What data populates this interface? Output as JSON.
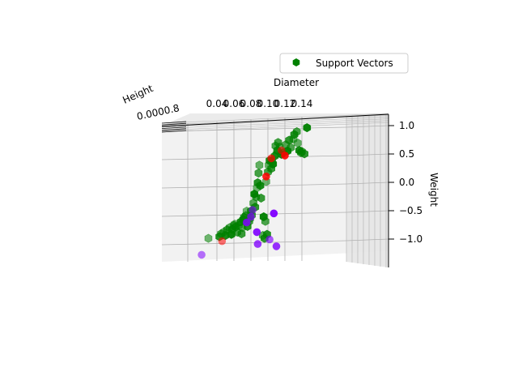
{
  "chart_data": {
    "type": "scatter",
    "projection": "3d",
    "xlabel": "Diameter",
    "ylabel": "Height",
    "zlabel": "Weight",
    "x_ticks": [
      "0.04",
      "0.06",
      "0.08",
      "0.10",
      "0.12",
      "0.14"
    ],
    "z_ticks": [
      "1.0",
      "0.5",
      "0.0",
      "−0.5",
      "−1.0"
    ],
    "y_ticks_overlapping": "0.0000.8",
    "xlim": [
      0.02,
      0.15
    ],
    "zlim": [
      -1.4,
      1.2
    ],
    "grid": true,
    "legend": {
      "placement": "top-right",
      "entries": [
        "Support Vectors"
      ]
    },
    "colors": {
      "support_vectors": "#008000",
      "class_red": "#ff0000",
      "class_purple": "#8000ff",
      "pane": "#f2f2f2",
      "grid": "#b0b0b0"
    },
    "series": [
      {
        "name": "Support Vectors",
        "marker": "hexagon",
        "color": "#008000",
        "points": [
          [
            0.03,
            -0.93
          ],
          [
            0.043,
            -0.9
          ],
          [
            0.045,
            -0.85
          ],
          [
            0.048,
            -0.82
          ],
          [
            0.05,
            -0.88
          ],
          [
            0.052,
            -0.78
          ],
          [
            0.055,
            -0.74
          ],
          [
            0.057,
            -0.86
          ],
          [
            0.058,
            -0.77
          ],
          [
            0.06,
            -0.7
          ],
          [
            0.061,
            -0.68
          ],
          [
            0.062,
            -0.73
          ],
          [
            0.064,
            -0.82
          ],
          [
            0.066,
            -0.7
          ],
          [
            0.068,
            -0.64
          ],
          [
            0.069,
            -0.85
          ],
          [
            0.07,
            -0.74
          ],
          [
            0.071,
            -0.6
          ],
          [
            0.072,
            -0.56
          ],
          [
            0.074,
            -0.53
          ],
          [
            0.075,
            -0.45
          ],
          [
            0.076,
            -0.72
          ],
          [
            0.078,
            -0.63
          ],
          [
            0.079,
            -0.58
          ],
          [
            0.08,
            -0.45
          ],
          [
            0.081,
            -0.52
          ],
          [
            0.083,
            -0.31
          ],
          [
            0.084,
            -0.15
          ],
          [
            0.085,
            -0.38
          ],
          [
            0.086,
            -0.2
          ],
          [
            0.087,
            -0.04
          ],
          [
            0.088,
            0.05
          ],
          [
            0.089,
            0.22
          ],
          [
            0.09,
            0.36
          ],
          [
            0.091,
            0.0
          ],
          [
            0.092,
            -0.22
          ],
          [
            0.094,
            -0.88
          ],
          [
            0.095,
            -0.55
          ],
          [
            0.096,
            -0.93
          ],
          [
            0.097,
            -0.63
          ],
          [
            0.098,
            0.07
          ],
          [
            0.099,
            -0.86
          ],
          [
            0.1,
            0.24
          ],
          [
            0.101,
            0.36
          ],
          [
            0.102,
            0.44
          ],
          [
            0.104,
            0.3
          ],
          [
            0.105,
            0.43
          ],
          [
            0.106,
            0.38
          ],
          [
            0.108,
            0.52
          ],
          [
            0.109,
            0.7
          ],
          [
            0.11,
            0.55
          ],
          [
            0.111,
            0.62
          ],
          [
            0.112,
            0.76
          ],
          [
            0.114,
            0.68
          ],
          [
            0.116,
            0.55
          ],
          [
            0.118,
            0.58
          ],
          [
            0.121,
            0.72
          ],
          [
            0.123,
            0.61
          ],
          [
            0.125,
            0.8
          ],
          [
            0.127,
            0.67
          ],
          [
            0.13,
            0.82
          ],
          [
            0.131,
            0.9
          ],
          [
            0.134,
            0.95
          ],
          [
            0.135,
            0.75
          ],
          [
            0.137,
            0.62
          ],
          [
            0.139,
            0.58
          ],
          [
            0.14,
            0.6
          ],
          [
            0.146,
            1.02
          ],
          [
            0.143,
            0.56
          ]
        ]
      },
      {
        "name": "",
        "marker": "circle",
        "color": "#ff0000",
        "points": [
          [
            0.046,
            -0.98
          ],
          [
            0.098,
            0.16
          ],
          [
            0.104,
            0.48
          ],
          [
            0.116,
            0.62
          ],
          [
            0.12,
            0.53
          ]
        ]
      },
      {
        "name": "",
        "marker": "circle",
        "color": "#8000ff",
        "points": [
          [
            0.022,
            -1.22
          ],
          [
            0.075,
            -0.65
          ],
          [
            0.08,
            -0.55
          ],
          [
            0.082,
            -0.43
          ],
          [
            0.087,
            -0.82
          ],
          [
            0.088,
            -1.03
          ],
          [
            0.102,
            -0.95
          ],
          [
            0.107,
            -0.49
          ],
          [
            0.11,
            -1.07
          ]
        ]
      }
    ]
  }
}
